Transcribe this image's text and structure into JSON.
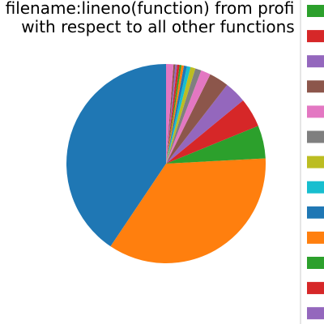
{
  "chart_data": {
    "type": "pie",
    "title_lines": [
      "filename:lineno(function) from profi",
      "with respect to all other functions"
    ],
    "start_angle_deg": 90,
    "direction": "counterclockwise",
    "slices": [
      {
        "value": 41.0,
        "color": "#1f77b4"
      },
      {
        "value": 35.6,
        "color": "#ff7f0e"
      },
      {
        "value": 5.4,
        "color": "#2ca02c"
      },
      {
        "value": 4.8,
        "color": "#d62728"
      },
      {
        "value": 3.6,
        "color": "#9467bd"
      },
      {
        "value": 3.2,
        "color": "#8c564b"
      },
      {
        "value": 1.6,
        "color": "#e377c2"
      },
      {
        "value": 1.0,
        "color": "#7f7f7f"
      },
      {
        "value": 0.8,
        "color": "#bcbd22"
      },
      {
        "value": 0.6,
        "color": "#17becf"
      },
      {
        "value": 0.5,
        "color": "#1f77b4"
      },
      {
        "value": 0.4,
        "color": "#ff7f0e"
      },
      {
        "value": 0.3,
        "color": "#2ca02c"
      },
      {
        "value": 0.4,
        "color": "#d62728"
      },
      {
        "value": 0.3,
        "color": "#9467bd"
      },
      {
        "value": 0.3,
        "color": "#8c564b"
      },
      {
        "value": 1.2,
        "color": "#e377c2"
      }
    ],
    "legend": {
      "placement": "right",
      "swatch_colors": [
        "#2ca02c",
        "#d62728",
        "#9467bd",
        "#8c564b",
        "#e377c2",
        "#7f7f7f",
        "#bcbd22",
        "#17becf",
        "#1f77b4",
        "#ff7f0e",
        "#2ca02c",
        "#d62728",
        "#9467bd"
      ]
    }
  }
}
